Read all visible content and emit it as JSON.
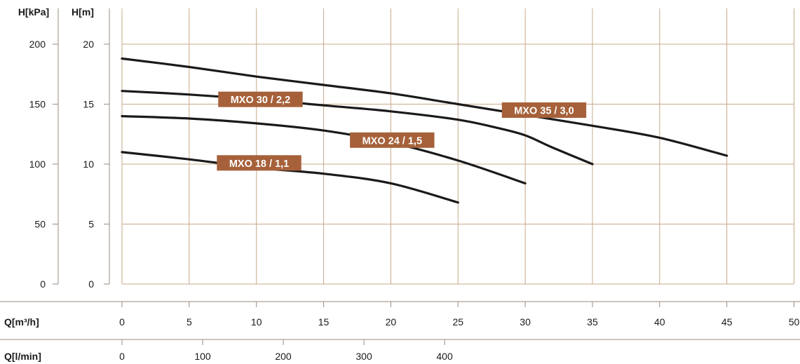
{
  "chart_data": {
    "type": "line",
    "axes": {
      "h_kpa": {
        "label": "H[kPa]",
        "ticks": [
          "0",
          "50",
          "100",
          "150",
          "200"
        ],
        "range": [
          0,
          200
        ]
      },
      "h_m": {
        "label": "H[m]",
        "ticks": [
          "0",
          "5",
          "10",
          "15",
          "20"
        ],
        "range": [
          0,
          20
        ]
      },
      "q_m3h": {
        "label": "Q[m³/h]",
        "ticks": [
          "0",
          "5",
          "10",
          "15",
          "20",
          "25",
          "30",
          "35",
          "40",
          "45",
          "50"
        ],
        "range": [
          0,
          50
        ]
      },
      "q_lmin": {
        "label": "Q[l/min]",
        "ticks": [
          "0",
          "100",
          "200",
          "300",
          "400"
        ]
      }
    },
    "grid": true,
    "series": [
      {
        "name": "MXO 35 / 3,0",
        "x": [
          0,
          5,
          10,
          15,
          20,
          25,
          30,
          35,
          40,
          45
        ],
        "y": [
          18.8,
          18.1,
          17.3,
          16.6,
          15.9,
          15.0,
          14.1,
          13.2,
          12.2,
          10.7
        ]
      },
      {
        "name": "MXO 30 / 2,2",
        "x": [
          0,
          5,
          10,
          15,
          20,
          25,
          28,
          30,
          32,
          35
        ],
        "y": [
          16.1,
          15.8,
          15.4,
          14.9,
          14.4,
          13.7,
          13.0,
          12.4,
          11.4,
          10.0
        ]
      },
      {
        "name": "MXO 24 / 1,5",
        "x": [
          0,
          5,
          10,
          15,
          20,
          25,
          30
        ],
        "y": [
          14.0,
          13.8,
          13.4,
          12.8,
          11.8,
          10.3,
          8.4
        ]
      },
      {
        "name": "MXO 18 / 1,1",
        "x": [
          0,
          5,
          10,
          15,
          20,
          25
        ],
        "y": [
          11.0,
          10.4,
          9.7,
          9.2,
          8.4,
          6.8
        ]
      }
    ],
    "colors": {
      "grid": "#c8a98a",
      "curve": "#1a1a1a",
      "label_bg": "#a6613a",
      "axis": "#9a8b80"
    }
  }
}
